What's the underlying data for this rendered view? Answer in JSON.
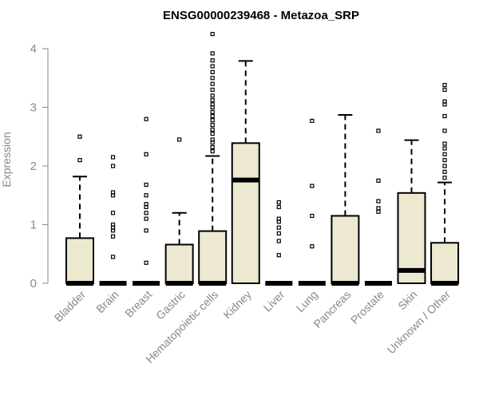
{
  "chart_data": {
    "type": "box",
    "title": "ENSG00000239468 - Metazoa_SRP",
    "ylabel": "Expression",
    "xlabel": "",
    "ylim": [
      0,
      4.3
    ],
    "yticks": [
      0,
      1,
      2,
      3,
      4
    ],
    "colors": {
      "box_fill": "#ede8d0",
      "line": "#000000",
      "axis_text": "#888888"
    },
    "categories": [
      "Bladder",
      "Brain",
      "Breast",
      "Gastric",
      "Hematopoietic cells",
      "Kidney",
      "Liver",
      "Lung",
      "Pancreas",
      "Prostate",
      "Skin",
      "Unknown / Other"
    ],
    "boxes": [
      {
        "name": "Bladder",
        "q1": 0,
        "median": 0,
        "q3": 0.77,
        "whisker_low": 0,
        "whisker_high": 1.82,
        "outliers": [
          2.1,
          2.5
        ]
      },
      {
        "name": "Brain",
        "q1": 0,
        "median": 0,
        "q3": 0,
        "whisker_low": 0,
        "whisker_high": 0,
        "outliers": [
          0.45,
          0.8,
          0.9,
          0.95,
          1.0,
          1.2,
          1.5,
          1.55,
          2.0,
          2.15
        ]
      },
      {
        "name": "Breast",
        "q1": 0,
        "median": 0,
        "q3": 0,
        "whisker_low": 0,
        "whisker_high": 0,
        "outliers": [
          0.35,
          0.9,
          1.1,
          1.2,
          1.3,
          1.35,
          1.5,
          1.68,
          2.2,
          2.8
        ]
      },
      {
        "name": "Gastric",
        "q1": 0,
        "median": 0,
        "q3": 0.66,
        "whisker_low": 0,
        "whisker_high": 1.2,
        "outliers": [
          2.45
        ]
      },
      {
        "name": "Hematopoietic cells",
        "q1": 0,
        "median": 0,
        "q3": 0.89,
        "whisker_low": 0,
        "whisker_high": 2.17,
        "outliers": [
          2.25,
          2.32,
          2.4,
          2.45,
          2.55,
          2.62,
          2.7,
          2.78,
          2.85,
          2.92,
          3.0,
          3.05,
          3.12,
          3.2,
          3.3,
          3.4,
          3.5,
          3.6,
          3.7,
          3.8,
          3.92,
          4.25
        ]
      },
      {
        "name": "Kidney",
        "q1": 0,
        "median": 1.76,
        "q3": 2.39,
        "whisker_low": 0,
        "whisker_high": 3.79,
        "outliers": []
      },
      {
        "name": "Liver",
        "q1": 0,
        "median": 0,
        "q3": 0,
        "whisker_low": 0,
        "whisker_high": 0,
        "outliers": [
          0.48,
          0.72,
          0.85,
          0.95,
          1.05,
          1.1,
          1.3,
          1.38
        ]
      },
      {
        "name": "Lung",
        "q1": 0,
        "median": 0,
        "q3": 0,
        "whisker_low": 0,
        "whisker_high": 0,
        "outliers": [
          0.63,
          1.15,
          1.66,
          2.77
        ]
      },
      {
        "name": "Pancreas",
        "q1": 0,
        "median": 0,
        "q3": 1.15,
        "whisker_low": 0,
        "whisker_high": 2.87,
        "outliers": []
      },
      {
        "name": "Prostate",
        "q1": 0,
        "median": 0,
        "q3": 0,
        "whisker_low": 0,
        "whisker_high": 0,
        "outliers": [
          1.22,
          1.28,
          1.4,
          1.75,
          2.6
        ]
      },
      {
        "name": "Skin",
        "q1": 0,
        "median": 0.22,
        "q3": 1.54,
        "whisker_low": 0,
        "whisker_high": 2.44,
        "outliers": []
      },
      {
        "name": "Unknown / Other",
        "q1": 0,
        "median": 0,
        "q3": 0.69,
        "whisker_low": 0,
        "whisker_high": 1.72,
        "outliers": [
          1.8,
          1.9,
          2.0,
          2.1,
          2.2,
          2.3,
          2.38,
          2.6,
          2.85,
          3.05,
          3.1,
          3.3,
          3.38
        ]
      }
    ]
  }
}
